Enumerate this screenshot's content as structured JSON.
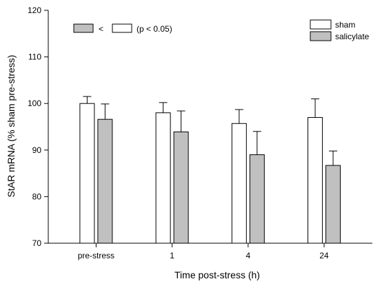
{
  "chart_data": {
    "type": "bar",
    "title": "",
    "xlabel": "Time post-stress (h)",
    "ylabel": "StAR mRNA (% sham pre-stress)",
    "ylim": [
      70,
      120
    ],
    "yticks": [
      70,
      80,
      90,
      100,
      110,
      120
    ],
    "categories": [
      "pre-stress",
      "1",
      "4",
      "24"
    ],
    "series": [
      {
        "name": "sham",
        "color": "#ffffff",
        "values": [
          100.0,
          98.0,
          95.7,
          97.0
        ],
        "error": [
          1.5,
          2.2,
          3.0,
          4.0
        ]
      },
      {
        "name": "salicylate",
        "color": "#c0c0c0",
        "values": [
          96.6,
          93.9,
          89.0,
          86.7
        ],
        "error": [
          3.3,
          4.5,
          5.0,
          3.1
        ]
      }
    ],
    "legend_position": "top-right",
    "grid": false,
    "annotation": {
      "symbol": "<",
      "text": "(p < 0.05)"
    }
  }
}
